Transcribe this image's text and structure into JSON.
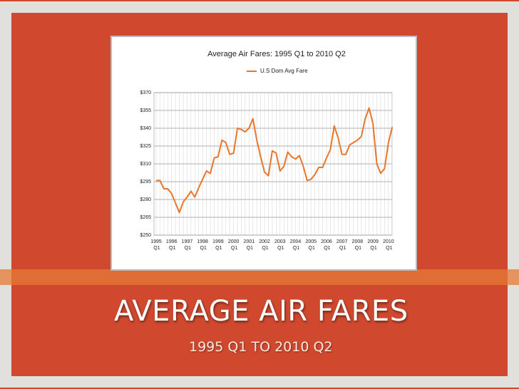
{
  "slide": {
    "title": "AVERAGE AIR FARES",
    "subtitle": "1995 Q1 TO 2010 Q2"
  },
  "chart_data": {
    "type": "line",
    "title": "Average Air Fares:  1995 Q1 to 2010 Q2",
    "categories": [
      "1995 Q1",
      null,
      null,
      null,
      "1996 Q1",
      null,
      null,
      null,
      "1997 Q1",
      null,
      null,
      null,
      "1998 Q1",
      null,
      null,
      null,
      "1999 Q1",
      null,
      null,
      null,
      "2000 Q1",
      null,
      null,
      null,
      "2001 Q1",
      null,
      null,
      null,
      "2002 Q1",
      null,
      null,
      null,
      "2003 Q1",
      null,
      null,
      null,
      "2004 Q1",
      null,
      null,
      null,
      "2005 Q1",
      null,
      null,
      null,
      "2006 Q1",
      null,
      null,
      null,
      "2007 Q1",
      null,
      null,
      null,
      "2008 Q1",
      null,
      null,
      null,
      "2009 Q1",
      null,
      null,
      null,
      "2010 Q1",
      null
    ],
    "series": [
      {
        "name": "U.S Dom Avg Fare",
        "color": "#e8762b",
        "values": [
          296,
          296,
          289,
          289,
          285,
          277,
          269,
          278,
          282,
          287,
          282,
          290,
          297,
          304,
          302,
          315,
          316,
          330,
          328,
          318,
          319,
          340,
          339,
          337,
          340,
          348,
          330,
          316,
          303,
          300,
          321,
          319,
          304,
          308,
          320,
          316,
          314,
          317,
          308,
          296,
          297,
          301,
          307,
          307,
          315,
          322,
          342,
          332,
          318,
          318,
          326,
          328,
          330,
          333,
          348,
          357,
          344,
          310,
          302,
          306,
          328,
          341
        ]
      }
    ],
    "ylim": [
      250,
      370
    ],
    "yticks": [
      {
        "value": 250,
        "label": "$250"
      },
      {
        "value": 265,
        "label": "$265"
      },
      {
        "value": 280,
        "label": "$280"
      },
      {
        "value": 295,
        "label": "$295"
      },
      {
        "value": 310,
        "label": "$310"
      },
      {
        "value": 325,
        "label": "$325"
      },
      {
        "value": 340,
        "label": "$340"
      },
      {
        "value": 355,
        "label": "$355"
      },
      {
        "value": 370,
        "label": "$370"
      }
    ],
    "grid": true
  }
}
